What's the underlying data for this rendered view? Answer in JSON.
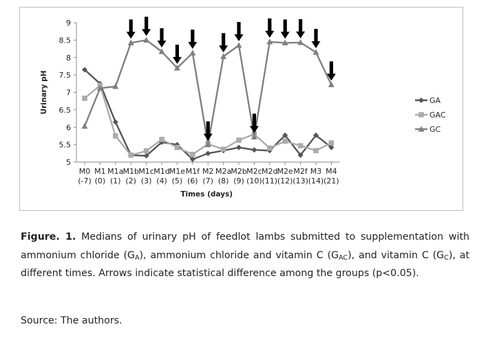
{
  "chart_data": {
    "type": "line",
    "title": "",
    "xlabel": "Times (days)",
    "ylabel": "Urinary pH",
    "ylim": [
      5,
      9
    ],
    "yticks": [
      "5",
      "5.5",
      "6",
      "6.5",
      "7",
      "7.5",
      "8",
      "8.5",
      "9"
    ],
    "categories": [
      "M0",
      "M1",
      "M1a",
      "M1b",
      "M1c",
      "M1d",
      "M1e",
      "M1f",
      "M2",
      "M2a",
      "M2b",
      "M2c",
      "M2d",
      "M2e",
      "M2f",
      "M3",
      "M4"
    ],
    "category_days": [
      "(-7)",
      "(0)",
      "(1)",
      "(2)",
      "(3)",
      "(4)",
      "(5)",
      "(6)",
      "(7)",
      "(8)",
      "(9)",
      "(10)",
      "(11)",
      "(12)",
      "(13)",
      "(14)",
      "(21)"
    ],
    "series": [
      {
        "name": "GA",
        "marker": "diamond",
        "color": "#555555",
        "values": [
          7.65,
          7.25,
          6.15,
          5.2,
          5.18,
          5.57,
          5.5,
          5.08,
          5.25,
          5.33,
          5.42,
          5.35,
          5.33,
          5.77,
          5.2,
          5.77,
          5.42
        ]
      },
      {
        "name": "GAC",
        "marker": "square",
        "color": "#ababab",
        "values": [
          6.83,
          7.2,
          5.75,
          5.2,
          5.32,
          5.65,
          5.42,
          5.22,
          5.52,
          5.37,
          5.63,
          5.8,
          5.4,
          5.6,
          5.47,
          5.33,
          5.55
        ]
      },
      {
        "name": "GC",
        "marker": "triangle",
        "color": "#808080",
        "values": [
          6.03,
          7.12,
          7.17,
          8.42,
          8.5,
          8.17,
          7.7,
          8.13,
          5.5,
          8.03,
          8.35,
          5.72,
          8.45,
          8.42,
          8.43,
          8.15,
          7.22
        ]
      }
    ],
    "significant_difference_categories": [
      "M1b",
      "M1c",
      "M1d",
      "M1e",
      "M1f",
      "M2",
      "M2a",
      "M2b",
      "M2c",
      "M2d",
      "M2e",
      "M2f",
      "M3",
      "M4"
    ],
    "legend_position": "right",
    "grid": false
  },
  "caption": {
    "figure_label": "Figure. 1.",
    "text_1": " Medians of urinary pH of feedlot lambs submitted to supplementation with ammonium chloride (G",
    "sub_1": "A",
    "text_2": "), ammonium chloride and vitamin C (G",
    "sub_2": "AC",
    "text_3": "), and vitamin C (G",
    "sub_3": "C",
    "text_4": "), at different times. Arrows indicate statistical difference among the groups (p<0.05)."
  },
  "source": "Source: The authors."
}
